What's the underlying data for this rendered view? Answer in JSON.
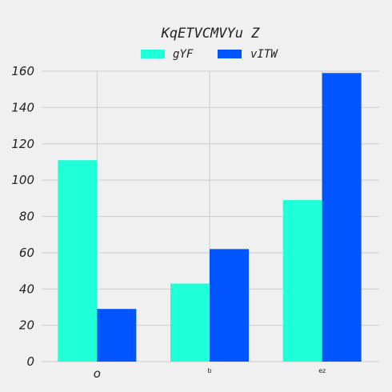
{
  "chart_data": {
    "type": "bar",
    "title": "KqETVCMVYu Z",
    "categories": [
      "o",
      "b",
      "ez"
    ],
    "series": [
      {
        "name": "gYF",
        "values": [
          111,
          43,
          89
        ],
        "color": "#1fffd8"
      },
      {
        "name": "vITW",
        "values": [
          29,
          62,
          159
        ],
        "color": "#0055ff"
      }
    ],
    "ylim": [
      0,
      160
    ],
    "yticks": [
      0,
      20,
      40,
      60,
      80,
      100,
      120,
      140,
      160
    ],
    "grid": true,
    "legend": "top-center"
  }
}
